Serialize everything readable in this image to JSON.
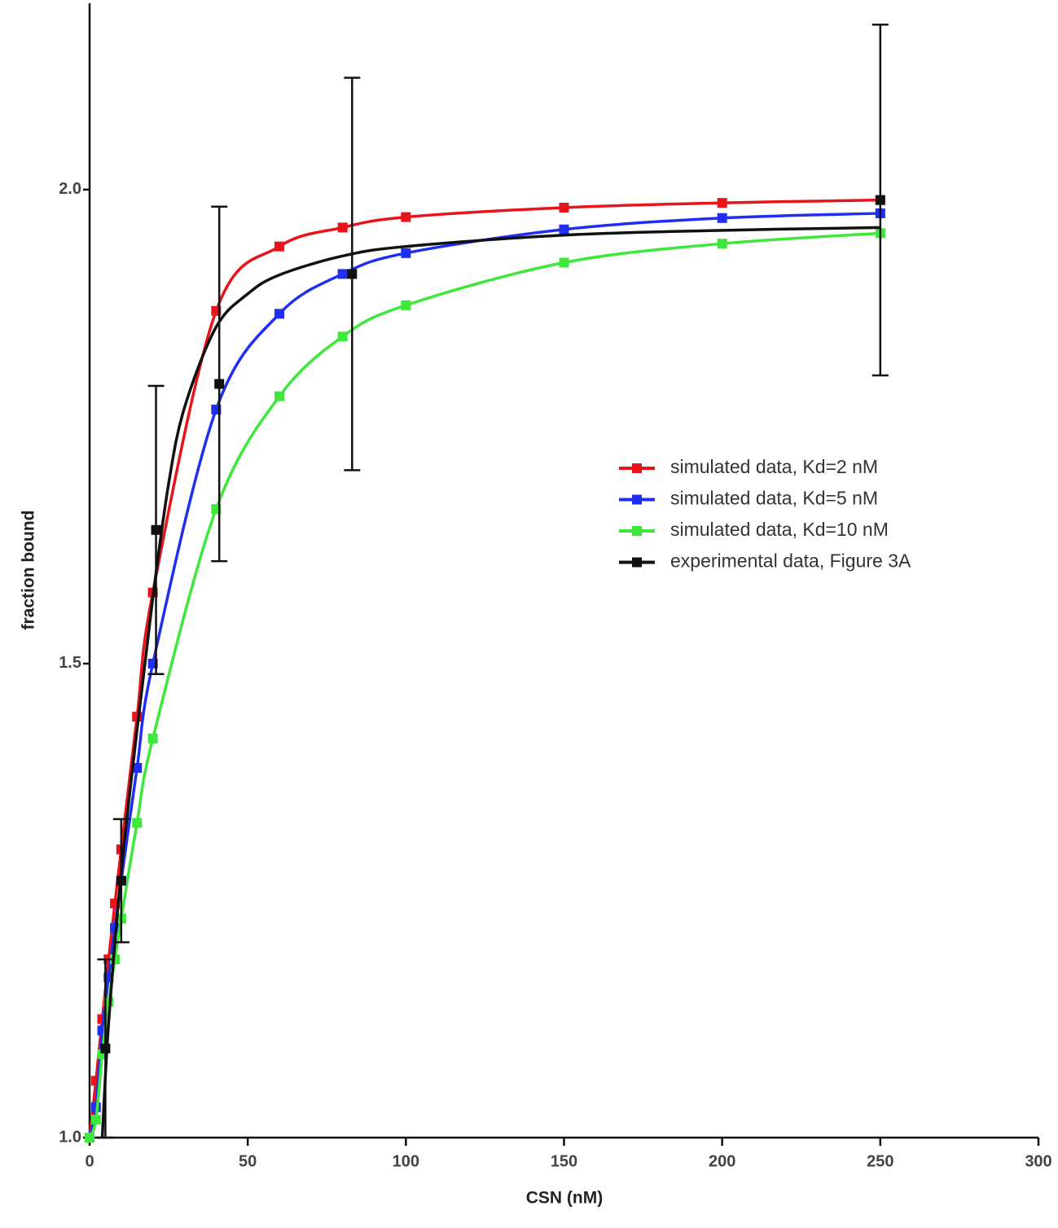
{
  "chart_data": {
    "type": "line",
    "xlabel": "CSN (nM)",
    "ylabel": "fraction bound",
    "xlim": [
      0,
      300
    ],
    "ylim": [
      1.0,
      2.2
    ],
    "xticks": [
      0,
      50,
      100,
      150,
      200,
      250,
      300
    ],
    "yticks": [
      {
        "value": 1.0,
        "label": "1.0"
      },
      1.5,
      {
        "value": 2.0,
        "label": "2.0"
      }
    ],
    "legend": "center right",
    "series": [
      {
        "name": "simulated data, Kd=2 nM",
        "color": "#e8141b",
        "x": [
          0,
          2,
          4,
          6,
          8,
          10,
          15,
          20,
          40,
          60,
          80,
          100,
          150,
          200,
          250
        ],
        "values": [
          1.0,
          1.06,
          1.125,
          1.188,
          1.247,
          1.304,
          1.444,
          1.575,
          1.872,
          1.94,
          1.96,
          1.971,
          1.981,
          1.986,
          1.989
        ]
      },
      {
        "name": "simulated data, Kd=5 nM",
        "color": "#1f2ef0",
        "x": [
          0,
          2,
          4,
          6,
          8,
          10,
          15,
          20,
          40,
          60,
          80,
          100,
          150,
          200,
          250
        ],
        "values": [
          1.0,
          1.032,
          1.113,
          1.169,
          1.221,
          1.271,
          1.39,
          1.5,
          1.768,
          1.869,
          1.911,
          1.933,
          1.958,
          1.97,
          1.975
        ]
      },
      {
        "name": "simulated data, Kd=10 nM",
        "color": "#3ee83a",
        "x": [
          0,
          2,
          4,
          6,
          8,
          10,
          15,
          20,
          40,
          60,
          80,
          100,
          150,
          200,
          250
        ],
        "values": [
          1.0,
          1.019,
          1.088,
          1.143,
          1.188,
          1.231,
          1.332,
          1.421,
          1.663,
          1.782,
          1.845,
          1.878,
          1.923,
          1.943,
          1.954
        ]
      },
      {
        "name": "experimental data, Figure 3A",
        "color": "#111111",
        "x": [
          5,
          10,
          21,
          41,
          83,
          250
        ],
        "values": [
          1.094,
          1.271,
          1.641,
          1.795,
          1.911,
          1.989
        ],
        "errors": [
          0.094,
          0.065,
          0.152,
          0.187,
          0.207,
          0.185
        ],
        "fit": {
          "x": [
            4,
            6,
            10,
            15,
            20,
            25,
            30,
            40,
            50,
            60,
            80,
            100,
            150,
            200,
            250
          ],
          "values": [
            1.0,
            1.12,
            1.28,
            1.43,
            1.57,
            1.69,
            1.77,
            1.855,
            1.89,
            1.91,
            1.93,
            1.94,
            1.952,
            1.957,
            1.96
          ]
        }
      }
    ]
  }
}
